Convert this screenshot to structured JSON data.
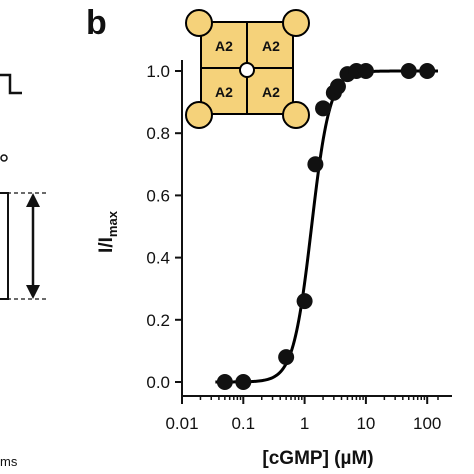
{
  "panel_label": "b",
  "left_fragment": {
    "unit_label": "ms"
  },
  "channel_diagram": {
    "subunits": [
      "A2",
      "A2",
      "A2",
      "A2"
    ],
    "fill_color": "#F5D27A",
    "stroke_color": "#000000"
  },
  "chart_data": {
    "type": "scatter",
    "title": "",
    "xlabel": "[cGMP] (µM)",
    "ylabel": "I/Imax",
    "ylabel_main": "I/I",
    "ylabel_sub": "max",
    "x_scale": "log",
    "xlim": [
      0.01,
      150
    ],
    "ylim": [
      0.0,
      1.05
    ],
    "x_ticks": [
      0.01,
      0.1,
      1,
      10,
      100
    ],
    "x_tick_labels": [
      "0.01",
      "0.1",
      "1",
      "10",
      "100"
    ],
    "y_ticks": [
      0.0,
      0.2,
      0.4,
      0.6,
      0.8,
      1.0
    ],
    "y_tick_labels": [
      "0.0",
      "0.2",
      "0.4",
      "0.6",
      "0.8",
      "1.0"
    ],
    "grid": false,
    "series": [
      {
        "kind": "points",
        "x": [
          0.05,
          0.1,
          0.5,
          1.0,
          1.5,
          2.0,
          3.0,
          3.5,
          5.0,
          7.0,
          10.0,
          50.0,
          100.0
        ],
        "y": [
          0.0,
          0.0,
          0.08,
          0.26,
          0.7,
          0.88,
          0.93,
          0.95,
          0.99,
          1.0,
          1.0,
          1.0,
          1.0
        ]
      },
      {
        "kind": "fit",
        "model": "hill",
        "ec50": 1.3,
        "hill_n": 2.9
      }
    ]
  }
}
